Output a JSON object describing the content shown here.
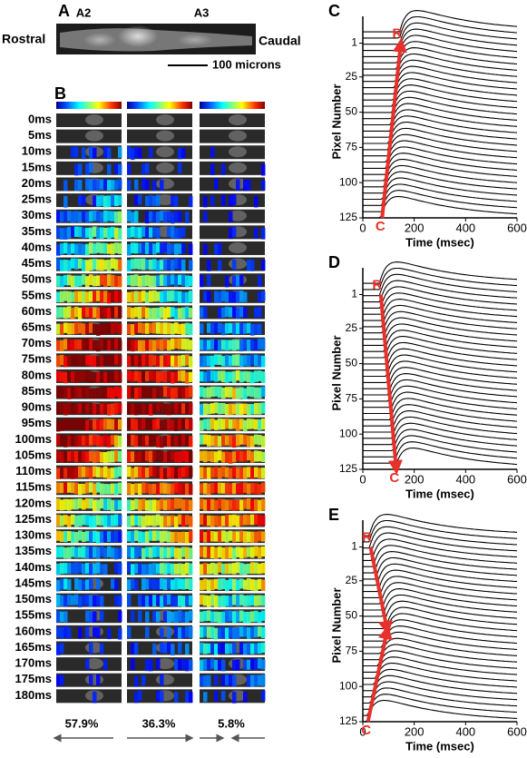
{
  "panel_a": {
    "letter": "A",
    "regions": [
      "A2",
      "A3"
    ],
    "rostral": "Rostral",
    "caudal": "Caudal",
    "scale_bar": "100 microns"
  },
  "panel_b": {
    "letter": "B",
    "times": [
      "0ms",
      "5ms",
      "10ms",
      "15ms",
      "20ms",
      "25ms",
      "30ms",
      "35ms",
      "40ms",
      "45ms",
      "50ms",
      "55ms",
      "60ms",
      "65ms",
      "70ms",
      "75ms",
      "80ms",
      "85ms",
      "90ms",
      "95ms",
      "100ms",
      "105ms",
      "110ms",
      "115ms",
      "120ms",
      "125ms",
      "130ms",
      "135ms",
      "140ms",
      "145ms",
      "150ms",
      "155ms",
      "160ms",
      "165ms",
      "170ms",
      "175ms",
      "180ms"
    ],
    "percentages": [
      "57.9%",
      "36.3%",
      "5.8%"
    ]
  },
  "plots": [
    {
      "letter": "C",
      "ylabel": "Pixel Number",
      "xlabel": "Time (msec)",
      "xlim": [
        0,
        600
      ],
      "xticks": [
        0,
        200,
        400,
        600
      ],
      "ylim": [
        -18,
        125
      ],
      "yticks": [
        1,
        25,
        50,
        75,
        100,
        125
      ],
      "rostral_label": "R",
      "caudal_label": "C",
      "arrows": [
        {
          "from": [
            75,
            125
          ],
          "to": [
            148,
            1
          ]
        }
      ]
    },
    {
      "letter": "D",
      "ylabel": "Pixel Number",
      "xlabel": "Time (msec)",
      "xlim": [
        0,
        600
      ],
      "xticks": [
        0,
        200,
        400,
        600
      ],
      "ylim": [
        -18,
        125
      ],
      "yticks": [
        1,
        25,
        50,
        75,
        100,
        125
      ],
      "rostral_label": "R",
      "caudal_label": "C",
      "arrows": [
        {
          "from": [
            70,
            1
          ],
          "to": [
            130,
            125
          ]
        }
      ]
    },
    {
      "letter": "E",
      "ylabel": "Pixel Number",
      "xlabel": "Time (msec)",
      "xlim": [
        0,
        600
      ],
      "xticks": [
        0,
        200,
        400,
        600
      ],
      "ylim": [
        -18,
        125
      ],
      "yticks": [
        1,
        25,
        50,
        75,
        100,
        125
      ],
      "rostral_label": "R",
      "caudal_label": "C",
      "arrows": [
        {
          "from": [
            30,
            1
          ],
          "to": [
            95,
            60
          ]
        },
        {
          "from": [
            20,
            125
          ],
          "to": [
            95,
            60
          ]
        }
      ]
    }
  ]
}
